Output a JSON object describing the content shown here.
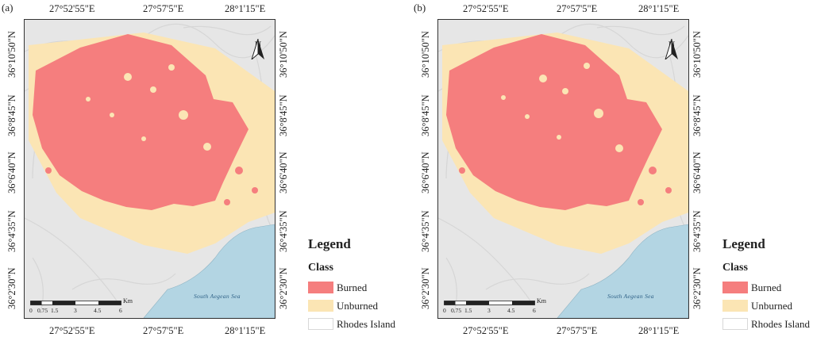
{
  "panels": [
    {
      "label": "(a)",
      "top_coords": [
        "27°52'55\"E",
        "27°57'5\"E",
        "28°1'15\"E"
      ],
      "bottom_coords": [
        "27°52'55\"E",
        "27°57'5\"E",
        "28°1'15\"E"
      ],
      "left_coords": [
        "36°10'50\"N",
        "36°8'45\"N",
        "36°6'40\"N",
        "36°4'35\"N",
        "36°2'30\"N"
      ],
      "right_coords": [
        "36°10'50\"N",
        "36°8'45\"N",
        "36°6'40\"N",
        "36°4'35\"N",
        "36°2'30\"N"
      ],
      "north_label": "N",
      "sea_label": "South Aegean Sea",
      "scale_ticks": [
        "0",
        "0.75",
        "1.5",
        "3",
        "4.5",
        "6"
      ],
      "scale_unit": "Km"
    },
    {
      "label": "(b)",
      "top_coords": [
        "27°52'55\"E",
        "27°57'5\"E",
        "28°1'15\"E"
      ],
      "bottom_coords": [
        "27°52'55\"E",
        "27°57'5\"E",
        "28°1'15\"E"
      ],
      "left_coords": [
        "36°10'50\"N",
        "36°8'45\"N",
        "36°6'40\"N",
        "36°4'35\"N",
        "36°2'30\"N"
      ],
      "right_coords": [
        "36°10'50\"N",
        "36°8'45\"N",
        "36°6'40\"N",
        "36°4'35\"N",
        "36°2'30\"N"
      ],
      "north_label": "N",
      "sea_label": "South Aegean Sea",
      "scale_ticks": [
        "0",
        "0.75",
        "1.5",
        "3",
        "4.5",
        "6"
      ],
      "scale_unit": "Km"
    }
  ],
  "legend": {
    "title": "Legend",
    "subtitle": "Class",
    "items": [
      {
        "label": "Burned",
        "color": "#f57e7e"
      },
      {
        "label": "Unburned",
        "color": "#fbe5b4"
      },
      {
        "label": "Rhodes Island",
        "color": "#ffffff"
      }
    ]
  },
  "colors": {
    "terrain": "#e4e4e4",
    "sea": "#b3d5e3",
    "burned": "#f57e7e",
    "unburned": "#fbe5b4"
  }
}
